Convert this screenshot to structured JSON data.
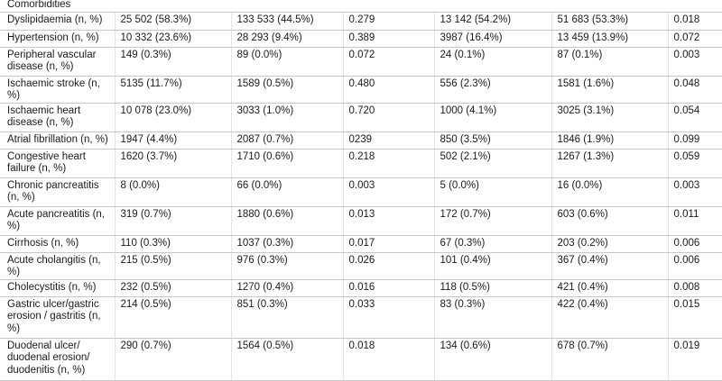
{
  "section_title": "Comorbidities",
  "rows": [
    {
      "label": "Dyslipidaemia (n, %)",
      "cells": [
        "25 502 (58.3%)",
        "133 533 (44.5%)",
        "0.279",
        "13 142 (54.2%)",
        "51 683 (53.3%)",
        "0.018"
      ]
    },
    {
      "label": "Hypertension (n, %)",
      "cells": [
        "10 332 (23.6%)",
        "28 293 (9.4%)",
        "0.389",
        "3987 (16.4%)",
        "13 459 (13.9%)",
        "0.072"
      ]
    },
    {
      "label": "Peripheral vascular disease (n, %)",
      "cells": [
        "149 (0.3%)",
        "89 (0.0%)",
        "0.072",
        "24 (0.1%)",
        "87 (0.1%)",
        "0.003"
      ]
    },
    {
      "label": "Ischaemic stroke (n, %)",
      "cells": [
        "5135 (11.7%)",
        "1589 (0.5%)",
        "0.480",
        "556 (2.3%)",
        "1581 (1.6%)",
        "0.048"
      ]
    },
    {
      "label": "Ischaemic heart disease (n, %)",
      "cells": [
        "10 078 (23.0%)",
        "3033 (1.0%)",
        "0.720",
        "1000 (4.1%)",
        "3025 (3.1%)",
        "0.054"
      ]
    },
    {
      "label": "Atrial fibrillation (n, %)",
      "cells": [
        "1947 (4.4%)",
        "2087 (0.7%)",
        "0239",
        "850 (3.5%)",
        "1846 (1.9%)",
        "0.099"
      ]
    },
    {
      "label": "Congestive heart failure (n, %)",
      "cells": [
        "1620 (3.7%)",
        "1710 (0.6%)",
        "0.218",
        "502 (2.1%)",
        "1267 (1.3%)",
        "0.059"
      ]
    },
    {
      "label": "Chronic pancreatitis (n, %)",
      "cells": [
        "8 (0.0%)",
        "66 (0.0%)",
        "0.003",
        "5 (0.0%)",
        "16 (0.0%)",
        "0.003"
      ]
    },
    {
      "label": "Acute pancreatitis (n, %)",
      "cells": [
        "319 (0.7%)",
        "1880 (0.6%)",
        "0.013",
        "172 (0.7%)",
        "603 (0.6%)",
        "0.011"
      ]
    },
    {
      "label": "Cirrhosis (n, %)",
      "cells": [
        "110 (0.3%)",
        "1037 (0.3%)",
        "0.017",
        "67 (0.3%)",
        "203 (0.2%)",
        "0.006"
      ]
    },
    {
      "label": "Acute cholangitis (n, %)",
      "cells": [
        "215 (0.5%)",
        "976 (0.3%)",
        "0.026",
        "101 (0.4%)",
        "367 (0.4%)",
        "0.006"
      ]
    },
    {
      "label": "Cholecystitis (n, %)",
      "cells": [
        "232 (0.5%)",
        "1270 (0.4%)",
        "0.016",
        "118 (0.5%)",
        "421 (0.4%)",
        "0.008"
      ]
    },
    {
      "label": "Gastric ulcer/gastric erosion / gastritis (n, %)",
      "cells": [
        "214 (0.5%)",
        "851 (0.3%)",
        "0.033",
        "83 (0.3%)",
        "422 (0.4%)",
        "0.015"
      ]
    },
    {
      "label": "Duodenal ulcer/ duodenal erosion/ duodenitis (n, %)",
      "cells": [
        "290 (0.7%)",
        "1564 (0.5%)",
        "0.018",
        "134 (0.6%)",
        "678 (0.7%)",
        "0.019"
      ]
    }
  ]
}
